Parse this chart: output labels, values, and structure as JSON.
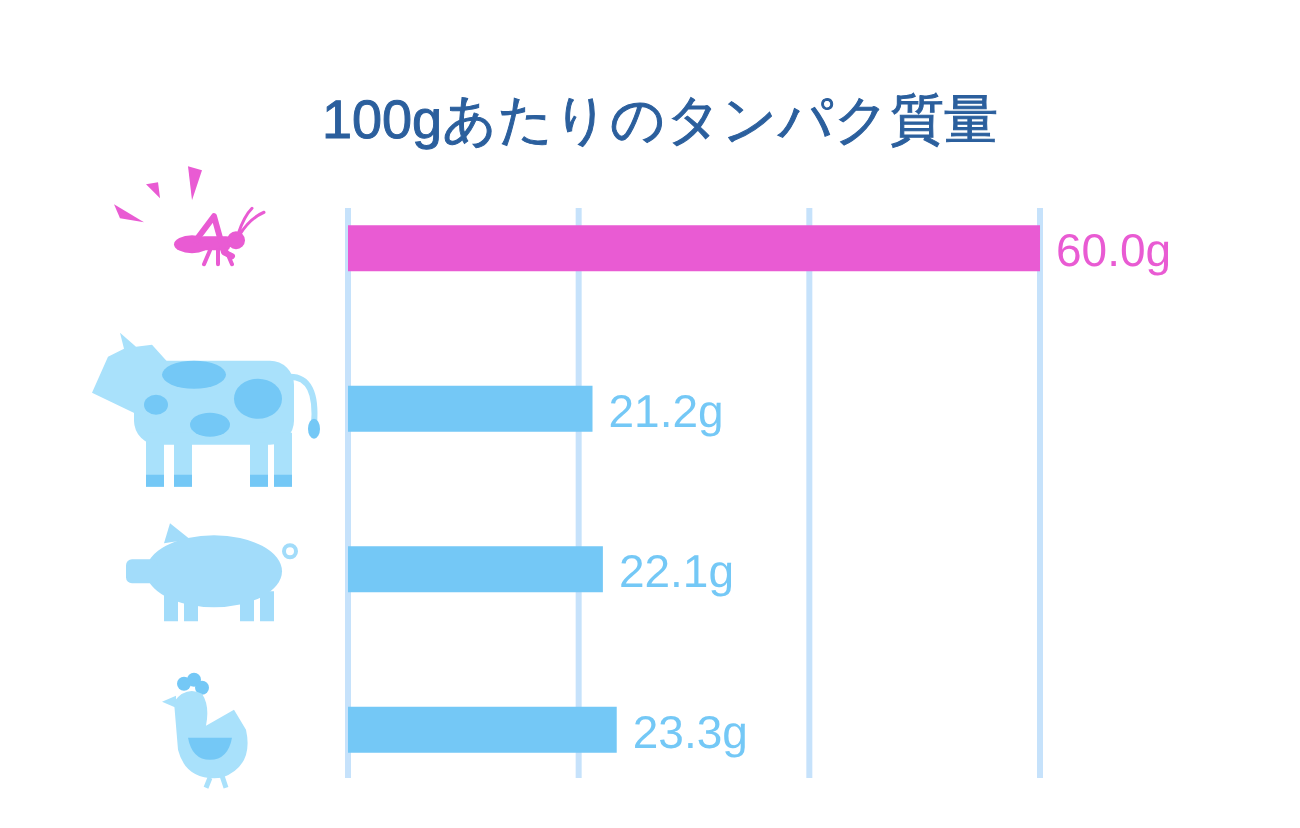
{
  "chart_data": {
    "type": "bar",
    "orientation": "horizontal",
    "title": "100gあたりのタンパク質量",
    "categories": [
      null,
      null,
      null,
      null
    ],
    "values": [
      60.0,
      21.2,
      22.1,
      23.3
    ],
    "colors": [
      "#e95bd3",
      "#74c8f6",
      "#74c8f6",
      "#74c8f6"
    ],
    "value_labels": [
      "60.0g",
      "21.2g",
      "22.1g",
      "23.3g"
    ],
    "xlim": [
      0,
      60
    ],
    "xticks": [
      {
        "value": 0,
        "label": null
      },
      {
        "value": 20,
        "label": null
      },
      {
        "value": 40,
        "label": null
      },
      {
        "value": 60,
        "label": null
      }
    ],
    "grid": "x"
  }
}
